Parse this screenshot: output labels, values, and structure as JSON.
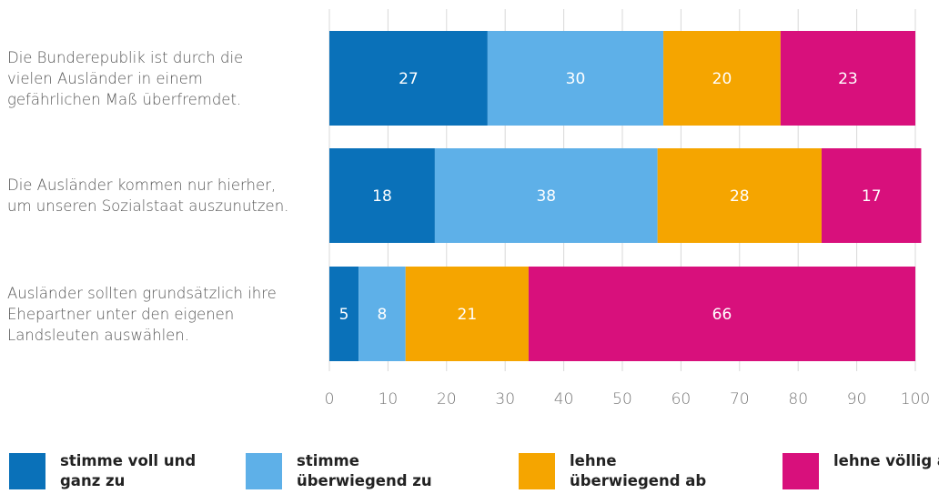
{
  "chart_data": {
    "type": "stacked-bar-horizontal",
    "categories": [
      "Die Bunderepublik ist durch die vielen Ausländer in einem gefährlichen Maß überfremdet.",
      "Die Ausländer kommen nur hierher, um unseren Sozialstaat auszunutzen.",
      "Ausländer sollten grundsätzlich ihre Ehepartner unter den eigenen Landsleuten auswählen."
    ],
    "series": [
      {
        "name": "stimme voll und ganz zu",
        "color": "#0a71b9",
        "values": [
          27,
          18,
          5
        ]
      },
      {
        "name": "stimme überwiegend zu",
        "color": "#5eb0e8",
        "values": [
          30,
          38,
          8
        ]
      },
      {
        "name": "lehne überwiegend ab",
        "color": "#f5a500",
        "values": [
          20,
          28,
          21
        ]
      },
      {
        "name": "lehne völlig ab",
        "color": "#d8107c",
        "values": [
          23,
          17,
          66
        ]
      }
    ],
    "xlim": [
      0,
      100
    ],
    "xticks": [
      0,
      10,
      20,
      30,
      40,
      50,
      60,
      70,
      80,
      90,
      100
    ],
    "grid": true
  }
}
